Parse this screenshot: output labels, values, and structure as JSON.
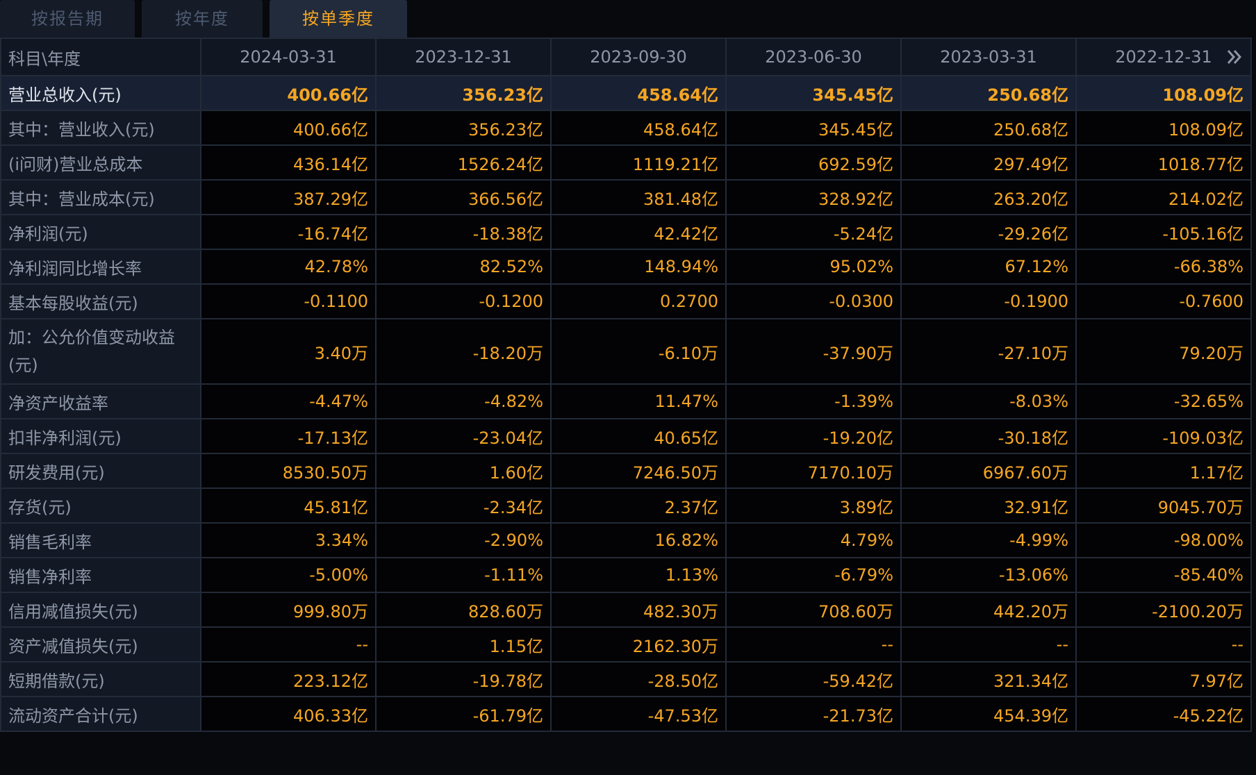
{
  "tabs": [
    {
      "label": "按报告期",
      "active": false
    },
    {
      "label": "按年度",
      "active": false
    },
    {
      "label": "按单季度",
      "active": true
    }
  ],
  "table": {
    "corner_label": "科目\\年度",
    "columns": [
      "2024-03-31",
      "2023-12-31",
      "2023-09-30",
      "2023-06-30",
      "2023-03-31",
      "2022-12-31"
    ],
    "more_icon": "double-chevron-right-icon",
    "rows": [
      {
        "label": "营业总收入(元)",
        "values": [
          "400.66亿",
          "356.23亿",
          "458.64亿",
          "345.45亿",
          "250.68亿",
          "108.09亿"
        ]
      },
      {
        "label": "其中：营业收入(元)",
        "values": [
          "400.66亿",
          "356.23亿",
          "458.64亿",
          "345.45亿",
          "250.68亿",
          "108.09亿"
        ]
      },
      {
        "label": "(i问财)营业总成本",
        "values": [
          "436.14亿",
          "1526.24亿",
          "1119.21亿",
          "692.59亿",
          "297.49亿",
          "1018.77亿"
        ]
      },
      {
        "label": "其中：营业成本(元)",
        "values": [
          "387.29亿",
          "366.56亿",
          "381.48亿",
          "328.92亿",
          "263.20亿",
          "214.02亿"
        ]
      },
      {
        "label": "净利润(元)",
        "values": [
          "-16.74亿",
          "-18.38亿",
          "42.42亿",
          "-5.24亿",
          "-29.26亿",
          "-105.16亿"
        ]
      },
      {
        "label": "净利润同比增长率",
        "values": [
          "42.78%",
          "82.52%",
          "148.94%",
          "95.02%",
          "67.12%",
          "-66.38%"
        ]
      },
      {
        "label": "基本每股收益(元)",
        "values": [
          "-0.1100",
          "-0.1200",
          "0.2700",
          "-0.0300",
          "-0.1900",
          "-0.7600"
        ]
      },
      {
        "label": "加：公允价值变动收益(元)",
        "values": [
          "3.40万",
          "-18.20万",
          "-6.10万",
          "-37.90万",
          "-27.10万",
          "79.20万"
        ]
      },
      {
        "label": "净资产收益率",
        "values": [
          "-4.47%",
          "-4.82%",
          "11.47%",
          "-1.39%",
          "-8.03%",
          "-32.65%"
        ]
      },
      {
        "label": "扣非净利润(元)",
        "values": [
          "-17.13亿",
          "-23.04亿",
          "40.65亿",
          "-19.20亿",
          "-30.18亿",
          "-109.03亿"
        ]
      },
      {
        "label": "研发费用(元)",
        "values": [
          "8530.50万",
          "1.60亿",
          "7246.50万",
          "7170.10万",
          "6967.60万",
          "1.17亿"
        ]
      },
      {
        "label": "存货(元)",
        "values": [
          "45.81亿",
          "-2.34亿",
          "2.37亿",
          "3.89亿",
          "32.91亿",
          "9045.70万"
        ]
      },
      {
        "label": "销售毛利率",
        "values": [
          "3.34%",
          "-2.90%",
          "16.82%",
          "4.79%",
          "-4.99%",
          "-98.00%"
        ]
      },
      {
        "label": "销售净利率",
        "values": [
          "-5.00%",
          "-1.11%",
          "1.13%",
          "-6.79%",
          "-13.06%",
          "-85.40%"
        ]
      },
      {
        "label": "信用减值损失(元)",
        "values": [
          "999.80万",
          "828.60万",
          "482.30万",
          "708.60万",
          "442.20万",
          "-2100.20万"
        ]
      },
      {
        "label": "资产减值损失(元)",
        "values": [
          "--",
          "1.15亿",
          "2162.30万",
          "--",
          "--",
          "--"
        ]
      },
      {
        "label": "短期借款(元)",
        "values": [
          "223.12亿",
          "-19.78亿",
          "-28.50亿",
          "-59.42亿",
          "321.34亿",
          "7.97亿"
        ]
      },
      {
        "label": "流动资产合计(元)",
        "values": [
          "406.33亿",
          "-61.79亿",
          "-47.53亿",
          "-21.73亿",
          "454.39亿",
          "-45.22亿"
        ]
      }
    ]
  },
  "colors": {
    "background": "#07090d",
    "value_text": "#f5a623",
    "label_text": "#8e97a8",
    "active_tab_text": "#f5a623",
    "inactive_tab_text": "#4d5a70",
    "grid_line": "#232b39"
  }
}
